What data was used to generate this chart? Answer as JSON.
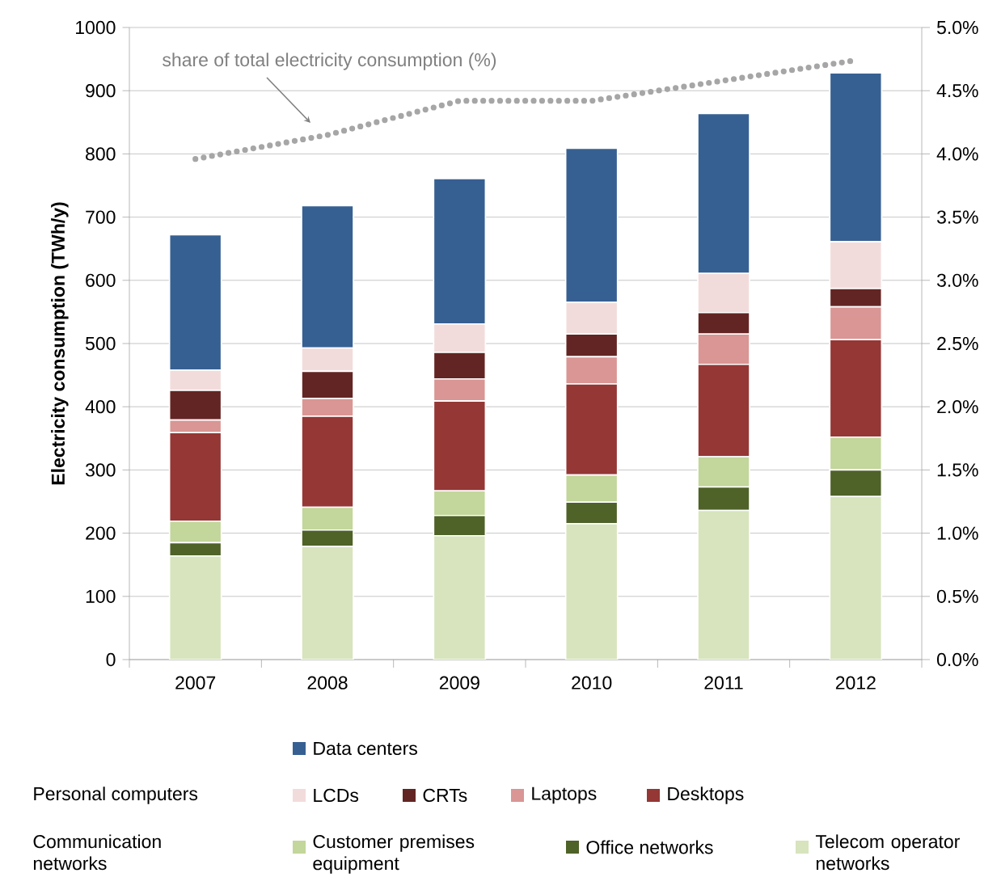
{
  "chart_data": {
    "type": "bar",
    "stacked": true,
    "ylabel": "Electricity consumption (TWh/y)",
    "categories": [
      "2007",
      "2008",
      "2009",
      "2010",
      "2011",
      "2012"
    ],
    "series": [
      {
        "name": "Telecom operator networks",
        "color": "#d7e4bd",
        "values": [
          164,
          179,
          196,
          215,
          236,
          258
        ]
      },
      {
        "name": "Office networks",
        "color": "#4f6228",
        "values": [
          21,
          26,
          32,
          34,
          37,
          42
        ]
      },
      {
        "name": "Customer premises equipment",
        "color": "#c3d69b",
        "values": [
          34,
          36,
          39,
          43,
          48,
          52
        ]
      },
      {
        "name": "Desktops",
        "color": "#953735",
        "values": [
          140,
          144,
          142,
          144,
          146,
          154
        ]
      },
      {
        "name": "Laptops",
        "color": "#d99694",
        "values": [
          20,
          28,
          35,
          43,
          48,
          52
        ]
      },
      {
        "name": "CRTs",
        "color": "#632523",
        "values": [
          47,
          43,
          42,
          36,
          34,
          29
        ]
      },
      {
        "name": "LCDs",
        "color": "#f2dcdb",
        "values": [
          32,
          37,
          45,
          50,
          62,
          74
        ]
      },
      {
        "name": "Data centers",
        "color": "#376092",
        "values": [
          214,
          225,
          230,
          244,
          253,
          267
        ]
      },
      {
        "type": "line",
        "axis": "y2",
        "color": "#a6a6a6",
        "line_style": "dotted",
        "values": [
          3.96,
          4.15,
          4.42,
          4.42,
          4.58,
          4.74
        ]
      }
    ],
    "ylim": [
      0,
      1000
    ],
    "yticks": [
      0,
      100,
      200,
      300,
      400,
      500,
      600,
      700,
      800,
      900,
      1000
    ],
    "y2lim": [
      0,
      5
    ],
    "y2ticks": [
      {
        "value": 0,
        "label": "0.0%"
      },
      {
        "value": 0.5,
        "label": "0.5%"
      },
      {
        "value": 1,
        "label": "1.0%"
      },
      {
        "value": 1.5,
        "label": "1.5%"
      },
      {
        "value": 2,
        "label": "2.0%"
      },
      {
        "value": 2.5,
        "label": "2.5%"
      },
      {
        "value": 3,
        "label": "3.0%"
      },
      {
        "value": 3.5,
        "label": "3.5%"
      },
      {
        "value": 4,
        "label": "4.0%"
      },
      {
        "value": 4.5,
        "label": "4.5%"
      },
      {
        "value": 5,
        "label": "5.0%"
      }
    ],
    "grid": "y",
    "legend": "bottom",
    "annotations": [
      "share of total electricity consumption (%)",
      "Personal computers",
      "Communication networks"
    ]
  }
}
